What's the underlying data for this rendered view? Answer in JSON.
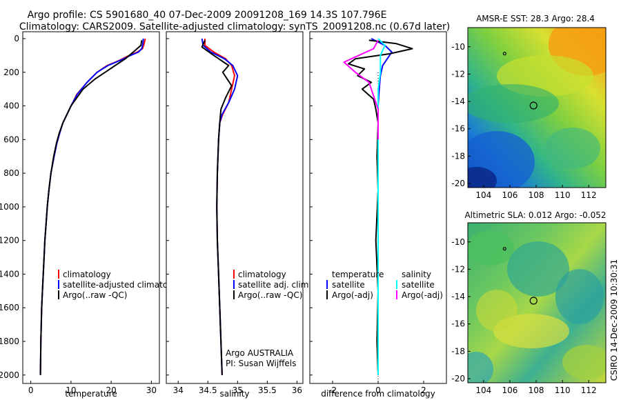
{
  "figure": {
    "title_line1": "Argo profile: CS 5901680_40 07-Dec-2009 20091208_169 14.3S 107.796E",
    "title_line2": "Climatology: CARS2009. Satellite-adjusted climatology: synTS_20091208.nc (0.67d later)",
    "side_label": "CSIRO 14-Dec-2009 10:30:31"
  },
  "colors": {
    "climatology": "#ff0000",
    "satellite": "#0000ff",
    "argo": "#000000",
    "sal_satellite": "#00ffff",
    "sal_argo": "#ff00ff"
  },
  "chart_data": [
    {
      "type": "line",
      "id": "temperature",
      "xlabel": "temperature",
      "xlim": [
        -2,
        32
      ],
      "ylim": [
        0,
        2050
      ],
      "y_reversed": true,
      "xticks": [
        0,
        10,
        20,
        30
      ],
      "yticks": [
        0,
        200,
        400,
        600,
        800,
        1000,
        1200,
        1400,
        1600,
        1800,
        2000
      ],
      "legend": [
        "climatology",
        "satellite-adjusted climatology",
        "Argo(..raw -QC)"
      ],
      "series": [
        {
          "name": "climatology",
          "color": "#ff0000",
          "x": [
            28.5,
            28.2,
            27.8,
            26.5,
            24.5,
            22,
            19,
            16.5,
            14,
            11.5,
            10,
            9,
            8,
            7.2,
            6.5,
            5.8,
            5,
            4.5,
            4.1,
            3.8,
            3.5,
            3.3,
            3.1,
            2.9,
            2.7,
            2.5,
            2.4
          ],
          "y": [
            0,
            30,
            60,
            80,
            100,
            130,
            160,
            200,
            260,
            330,
            400,
            450,
            500,
            560,
            620,
            700,
            800,
            900,
            1000,
            1100,
            1200,
            1300,
            1400,
            1500,
            1600,
            1800,
            2000
          ]
        },
        {
          "name": "satellite-adjusted climatology",
          "color": "#0000ff",
          "x": [
            28,
            27.9,
            27.6,
            26.8,
            24.8,
            22.2,
            19.2,
            16.5,
            14,
            11.6,
            10,
            9,
            8,
            7.2,
            6.5,
            5.8,
            5,
            4.5,
            4.1,
            3.8,
            3.5,
            3.3,
            3.1,
            2.9,
            2.7,
            2.5,
            2.4
          ],
          "y": [
            0,
            30,
            60,
            80,
            100,
            130,
            160,
            200,
            260,
            330,
            400,
            450,
            500,
            560,
            620,
            700,
            800,
            900,
            1000,
            1100,
            1200,
            1300,
            1400,
            1500,
            1600,
            1800,
            2000
          ]
        },
        {
          "name": "Argo(..raw -QC)",
          "color": "#000000",
          "x": [
            27.6,
            27.4,
            25.5,
            23.5,
            21,
            18.5,
            16,
            13,
            11.2,
            10,
            9,
            8,
            7.1,
            6.4,
            5.7,
            5,
            4.5,
            4.1,
            3.8,
            3.5,
            3.3,
            3.1,
            2.9,
            2.7,
            2.5,
            2.4
          ],
          "y": [
            10,
            40,
            80,
            120,
            160,
            200,
            240,
            300,
            360,
            400,
            450,
            500,
            560,
            620,
            700,
            800,
            900,
            1000,
            1100,
            1200,
            1300,
            1400,
            1500,
            1600,
            1800,
            2000
          ]
        }
      ]
    },
    {
      "type": "line",
      "id": "salinity",
      "xlabel": "salinity",
      "xlim": [
        33.8,
        36.1
      ],
      "ylim": [
        0,
        2050
      ],
      "y_reversed": true,
      "xticks": [
        34,
        34.5,
        35,
        35.5,
        36
      ],
      "legend": [
        "climatology",
        "satellite adj. clim.",
        "Argo(..raw -QC)"
      ],
      "annotation_line1": "Argo AUSTRALIA",
      "annotation_line2": "PI: Susan Wijffels",
      "series": [
        {
          "name": "climatology",
          "color": "#ff0000",
          "x": [
            34.45,
            34.45,
            34.6,
            34.8,
            34.9,
            34.95,
            34.9,
            34.85,
            34.75,
            34.7,
            34.68,
            34.66,
            34.65,
            34.66,
            34.68,
            34.7,
            34.72,
            34.74
          ],
          "y": [
            0,
            40,
            80,
            120,
            160,
            220,
            300,
            380,
            450,
            500,
            600,
            800,
            1000,
            1200,
            1400,
            1600,
            1800,
            2000
          ]
        },
        {
          "name": "satellite adj. clim.",
          "color": "#0000ff",
          "x": [
            34.4,
            34.42,
            34.55,
            34.78,
            34.92,
            35,
            34.95,
            34.85,
            34.74,
            34.7,
            34.68,
            34.66,
            34.65,
            34.66,
            34.68,
            34.7,
            34.72,
            34.74
          ],
          "y": [
            0,
            40,
            80,
            120,
            160,
            220,
            300,
            380,
            450,
            500,
            600,
            800,
            1000,
            1200,
            1400,
            1600,
            1800,
            2000
          ]
        },
        {
          "name": "Argo(..raw -QC)",
          "color": "#000000",
          "x": [
            34.45,
            34.4,
            34.6,
            34.85,
            34.75,
            34.9,
            34.8,
            34.72,
            34.7,
            34.68,
            34.66,
            34.65,
            34.66,
            34.68,
            34.7,
            34.72,
            34.74
          ],
          "y": [
            10,
            50,
            100,
            160,
            200,
            280,
            350,
            420,
            500,
            600,
            800,
            1000,
            1200,
            1400,
            1600,
            1800,
            2000
          ]
        }
      ]
    },
    {
      "type": "line",
      "id": "difference",
      "xlabel": "difference from climatology",
      "xlim": [
        -3,
        3
      ],
      "ylim": [
        0,
        2050
      ],
      "y_reversed": true,
      "xticks": [
        -2,
        0,
        2
      ],
      "legend": {
        "left_header": "temperature",
        "left_items": [
          "satellite",
          "Argo(-adj)"
        ],
        "right_header": "salinity",
        "right_items": [
          "satellite",
          "Argo(-adj)"
        ]
      },
      "series": [
        {
          "name": "temperature satellite",
          "color": "#0000ff",
          "x": [
            -0.3,
            0.3,
            0.6,
            0.4,
            0.2,
            0.1,
            0.05,
            0,
            0,
            0
          ],
          "y": [
            0,
            40,
            80,
            120,
            160,
            220,
            300,
            400,
            1000,
            2000
          ]
        },
        {
          "name": "temperature Argo(-adj)",
          "color": "#000000",
          "x": [
            -0.4,
            0.8,
            1.5,
            0.5,
            -1,
            -1.3,
            -0.6,
            -0.9,
            -0.3,
            -0.7,
            -0.2,
            -0.1,
            0,
            -0.05,
            0,
            -0.1,
            0,
            -0.05,
            0
          ],
          "y": [
            10,
            30,
            60,
            90,
            120,
            150,
            180,
            220,
            260,
            300,
            360,
            420,
            500,
            700,
            900,
            1200,
            1500,
            1800,
            2000
          ]
        },
        {
          "name": "salinity satellite",
          "color": "#00ffff",
          "x": [
            0,
            0.3,
            0.1,
            0.1,
            0,
            0,
            0,
            0
          ],
          "y": [
            0,
            40,
            100,
            200,
            300,
            500,
            1000,
            2000
          ]
        },
        {
          "name": "salinity Argo(-adj)",
          "color": "#ff00ff",
          "x": [
            0,
            -0.2,
            -1.5,
            -1,
            -0.4,
            -0.2,
            0,
            0
          ],
          "y": [
            10,
            60,
            140,
            200,
            260,
            340,
            420,
            600
          ]
        }
      ]
    },
    {
      "type": "heatmap",
      "id": "sst-map",
      "title": "AMSR-E SST: 28.3 Argo: 28.4",
      "xlim": [
        102.8,
        113.3
      ],
      "ylim": [
        -20.3,
        -8.6
      ],
      "xticks": [
        104,
        106,
        108,
        110,
        112
      ],
      "yticks": [
        -10,
        -12,
        -14,
        -16,
        -18,
        -20
      ],
      "markers": [
        {
          "label": "previous profile",
          "x": 105.6,
          "y": -10.5
        },
        {
          "label": "profile",
          "x": 107.8,
          "y": -14.3
        }
      ]
    },
    {
      "type": "heatmap",
      "id": "sla-map",
      "title": "Altimetric SLA: 0.012 Argo: -0.052",
      "xlim": [
        102.8,
        113.3
      ],
      "ylim": [
        -20.3,
        -8.6
      ],
      "xticks": [
        104,
        106,
        108,
        110,
        112
      ],
      "yticks": [
        -10,
        -12,
        -14,
        -16,
        -18,
        -20
      ],
      "markers": [
        {
          "label": "previous profile",
          "x": 105.6,
          "y": -10.5
        },
        {
          "label": "profile",
          "x": 107.8,
          "y": -14.3
        }
      ]
    }
  ]
}
